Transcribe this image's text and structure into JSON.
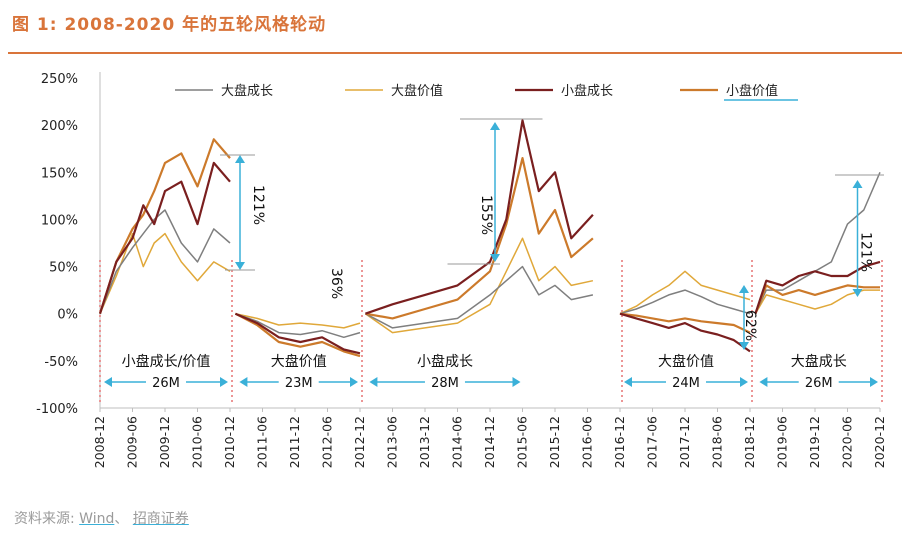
{
  "header": {
    "title": "图 1:  2008-2020 年的五轮风格轮动"
  },
  "footer": {
    "source_prefix": "资料来源:",
    "source_1": "Wind",
    "source_sep": "、",
    "source_2": "招商证券"
  },
  "colors": {
    "large_growth": "#7f7f7f",
    "large_value": "#e0a83a",
    "small_growth": "#7a1f1f",
    "small_value": "#cc7a2b",
    "accent": "#d9743a",
    "arrow": "#3ab0d8",
    "divider": "#e05050"
  },
  "chart_data": {
    "type": "line",
    "y_tick_labels": [
      "250%",
      "200%",
      "150%",
      "100%",
      "50%",
      "0%",
      "-50%",
      "-100%"
    ],
    "ylim": [
      -100,
      250
    ],
    "x_tick_labels": [
      "2008-12",
      "2009-06",
      "2009-12",
      "2010-06",
      "2010-12",
      "2011-06",
      "2011-12",
      "2012-06",
      "2012-12",
      "2013-06",
      "2013-12",
      "2014-06",
      "2014-12",
      "2015-06",
      "2015-12",
      "2016-06",
      "2016-12",
      "2017-06",
      "2017-12",
      "2018-06",
      "2018-12",
      "2019-06",
      "2019-12",
      "2020-06",
      "2020-12"
    ],
    "legend": [
      "大盘成长",
      "大盘价值",
      "小盘成长",
      "小盘价值"
    ],
    "legend_position": "top",
    "annotations": [
      {
        "text": "121%",
        "x": "2010-12",
        "y": 95
      },
      {
        "text": "36%",
        "x": "2012-12",
        "y": 30
      },
      {
        "text": "155%",
        "x": "2014-12",
        "y": 135
      },
      {
        "text": "62%",
        "x": "2018-12",
        "y": -5
      },
      {
        "text": "121%",
        "x": "2020-06",
        "y": 90
      }
    ],
    "periods": [
      {
        "label": "小盘成长/价值",
        "duration": "26M",
        "start": "2008-12",
        "end": "2010-12"
      },
      {
        "label": "大盘价值",
        "duration": "23M",
        "start": "2011-01",
        "end": "2012-12"
      },
      {
        "label": "小盘成长",
        "duration": "28M",
        "start": "2013-01",
        "end": "2015-06"
      },
      {
        "label": "大盘价值",
        "duration": "24M",
        "start": "2016-12",
        "end": "2018-12"
      },
      {
        "label": "大盘成长",
        "duration": "26M",
        "start": "2019-01",
        "end": "2020-12"
      }
    ],
    "segments": [
      {
        "x": [
          "2008-12",
          "2009-03",
          "2009-06",
          "2009-08",
          "2009-10",
          "2009-12",
          "2010-03",
          "2010-06",
          "2010-09",
          "2010-12"
        ],
        "series": [
          {
            "name": "大盘成长",
            "values": [
              0,
              45,
              70,
              85,
              100,
              110,
              75,
              55,
              90,
              75
            ]
          },
          {
            "name": "大盘价值",
            "values": [
              0,
              40,
              85,
              50,
              75,
              85,
              55,
              35,
              55,
              45
            ]
          },
          {
            "name": "小盘成长",
            "values": [
              0,
              55,
              80,
              115,
              95,
              130,
              140,
              95,
              160,
              140
            ]
          },
          {
            "name": "小盘价值",
            "values": [
              0,
              55,
              90,
              105,
              130,
              160,
              170,
              135,
              185,
              165
            ]
          }
        ]
      },
      {
        "x": [
          "2011-01",
          "2011-05",
          "2011-09",
          "2012-01",
          "2012-05",
          "2012-09",
          "2012-12"
        ],
        "series": [
          {
            "name": "大盘成长",
            "values": [
              0,
              -8,
              -20,
              -22,
              -18,
              -25,
              -20
            ]
          },
          {
            "name": "大盘价值",
            "values": [
              0,
              -5,
              -12,
              -10,
              -12,
              -15,
              -10
            ]
          },
          {
            "name": "小盘成长",
            "values": [
              0,
              -10,
              -25,
              -30,
              -25,
              -38,
              -42
            ]
          },
          {
            "name": "小盘价值",
            "values": [
              0,
              -12,
              -30,
              -35,
              -30,
              -40,
              -45
            ]
          }
        ]
      },
      {
        "x": [
          "2013-01",
          "2013-06",
          "2013-12",
          "2014-06",
          "2014-12",
          "2015-03",
          "2015-06",
          "2015-09",
          "2015-12",
          "2016-03",
          "2016-07"
        ],
        "series": [
          {
            "name": "大盘成长",
            "values": [
              0,
              -15,
              -10,
              -5,
              20,
              35,
              50,
              20,
              30,
              15,
              20
            ]
          },
          {
            "name": "大盘价值",
            "values": [
              0,
              -20,
              -15,
              -10,
              10,
              45,
              80,
              35,
              50,
              30,
              35
            ]
          },
          {
            "name": "小盘成长",
            "values": [
              0,
              10,
              20,
              30,
              55,
              100,
              205,
              130,
              150,
              80,
              105
            ]
          },
          {
            "name": "小盘价值",
            "values": [
              0,
              -5,
              5,
              15,
              45,
              95,
              165,
              85,
              110,
              60,
              80
            ]
          }
        ]
      },
      {
        "x": [
          "2016-12",
          "2017-03",
          "2017-06",
          "2017-09",
          "2017-12",
          "2018-03",
          "2018-06",
          "2018-09",
          "2018-12"
        ],
        "series": [
          {
            "name": "大盘成长",
            "values": [
              0,
              5,
              12,
              20,
              25,
              18,
              10,
              5,
              0
            ]
          },
          {
            "name": "大盘价值",
            "values": [
              0,
              8,
              20,
              30,
              45,
              30,
              25,
              20,
              15
            ]
          },
          {
            "name": "小盘成长",
            "values": [
              0,
              -5,
              -10,
              -15,
              -10,
              -18,
              -22,
              -28,
              -40
            ]
          },
          {
            "name": "小盘价值",
            "values": [
              0,
              -2,
              -5,
              -8,
              -5,
              -8,
              -10,
              -12,
              -20
            ]
          }
        ]
      },
      {
        "x": [
          "2019-01",
          "2019-03",
          "2019-06",
          "2019-09",
          "2019-12",
          "2020-03",
          "2020-06",
          "2020-09",
          "2020-12"
        ],
        "series": [
          {
            "name": "大盘成长",
            "values": [
              0,
              25,
              25,
              35,
              45,
              55,
              95,
              110,
              150
            ]
          },
          {
            "name": "大盘价值",
            "values": [
              0,
              20,
              15,
              10,
              5,
              10,
              20,
              25,
              25
            ]
          },
          {
            "name": "小盘成长",
            "values": [
              0,
              35,
              30,
              40,
              45,
              40,
              40,
              50,
              55
            ]
          },
          {
            "name": "小盘价值",
            "values": [
              0,
              30,
              20,
              25,
              20,
              25,
              30,
              28,
              28
            ]
          }
        ]
      }
    ]
  }
}
